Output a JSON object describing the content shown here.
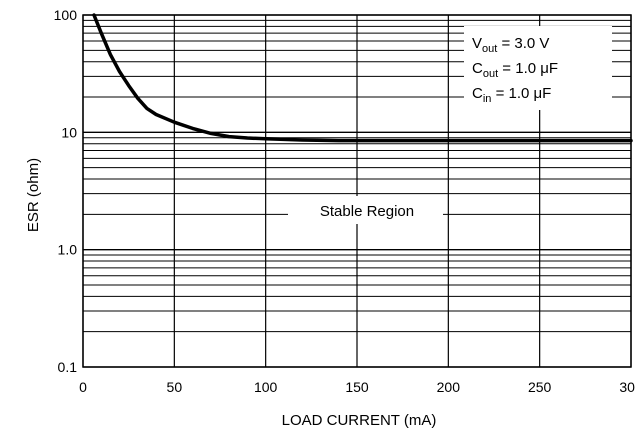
{
  "chart_data": {
    "type": "line",
    "title": "",
    "xlabel": "LOAD CURRENT (mA)",
    "ylabel": "ESR (ohm)",
    "xlim": [
      0,
      300
    ],
    "ylim": [
      0.1,
      100
    ],
    "y_scale": "log",
    "grid": true,
    "x_ticks": [
      0,
      50,
      100,
      150,
      200,
      250,
      300
    ],
    "x_tick_labels": [
      "0",
      "50",
      "100",
      "150",
      "200",
      "250",
      "300"
    ],
    "y_ticks": [
      0.1,
      1.0,
      10,
      100
    ],
    "y_tick_labels": [
      "0.1",
      "1.0",
      "10",
      "100"
    ],
    "series": [
      {
        "x": [
          6,
          10,
          15,
          20,
          25,
          30,
          35,
          40,
          50,
          60,
          70,
          80,
          90,
          100,
          120,
          140,
          160,
          200,
          250,
          300
        ],
        "y": [
          100,
          70,
          46,
          33,
          25,
          19.5,
          16,
          14.2,
          12.2,
          10.8,
          9.8,
          9.2,
          8.95,
          8.8,
          8.6,
          8.5,
          8.5,
          8.5,
          8.5,
          8.5
        ]
      }
    ],
    "annotations": {
      "region_label": "Stable Region",
      "conditions": [
        {
          "main": "V",
          "sub": "out",
          "rest": " = 3.0 V"
        },
        {
          "main": "C",
          "sub": "out",
          "rest": " = 1.0 μF"
        },
        {
          "main": "C",
          "sub": "in",
          "rest": " = 1.0 μF"
        }
      ]
    },
    "line_color": "#000000"
  }
}
